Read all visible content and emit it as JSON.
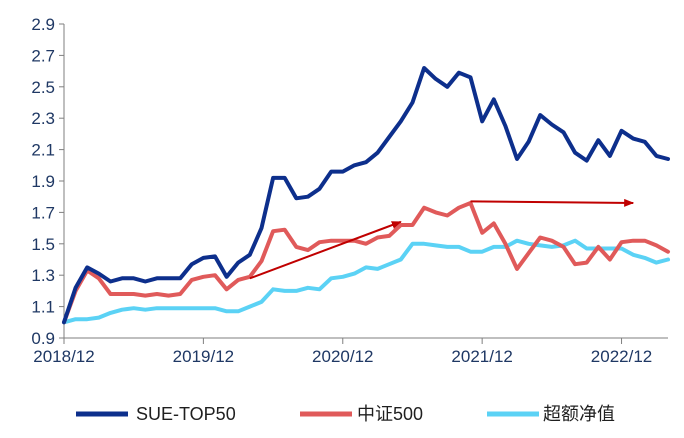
{
  "chart_data": {
    "type": "line",
    "title": "",
    "xlabel": "",
    "ylabel": "",
    "ylim": [
      0.9,
      2.9
    ],
    "yticks": [
      "0.9",
      "1.1",
      "1.3",
      "1.5",
      "1.7",
      "1.9",
      "2.1",
      "2.3",
      "2.5",
      "2.7",
      "2.9"
    ],
    "xticks": [
      "2018/12",
      "2019/12",
      "2020/12",
      "2021/12",
      "2022/12"
    ],
    "x_start": "2018/12",
    "grid": false,
    "legend_position": "bottom",
    "series": [
      {
        "name": "SUE-TOP50",
        "color": "#0d2f8c",
        "values": [
          1.0,
          1.22,
          1.35,
          1.31,
          1.26,
          1.28,
          1.28,
          1.26,
          1.28,
          1.28,
          1.28,
          1.37,
          1.41,
          1.42,
          1.29,
          1.38,
          1.43,
          1.6,
          1.92,
          1.92,
          1.79,
          1.8,
          1.85,
          1.96,
          1.96,
          2.0,
          2.02,
          2.08,
          2.18,
          2.28,
          2.4,
          2.62,
          2.55,
          2.5,
          2.59,
          2.56,
          2.28,
          2.42,
          2.25,
          2.04,
          2.15,
          2.32,
          2.26,
          2.21,
          2.08,
          2.03,
          2.16,
          2.06,
          2.22,
          2.17,
          2.15,
          2.06,
          2.04
        ]
      },
      {
        "name": "中证500",
        "color": "#e05a5a",
        "values": [
          1.0,
          1.2,
          1.33,
          1.28,
          1.18,
          1.18,
          1.18,
          1.17,
          1.18,
          1.17,
          1.18,
          1.27,
          1.29,
          1.3,
          1.21,
          1.27,
          1.29,
          1.39,
          1.58,
          1.59,
          1.48,
          1.46,
          1.51,
          1.52,
          1.52,
          1.52,
          1.5,
          1.54,
          1.55,
          1.62,
          1.62,
          1.73,
          1.7,
          1.68,
          1.73,
          1.76,
          1.57,
          1.63,
          1.5,
          1.34,
          1.44,
          1.54,
          1.52,
          1.48,
          1.37,
          1.38,
          1.48,
          1.4,
          1.51,
          1.52,
          1.52,
          1.49,
          1.45
        ]
      },
      {
        "name": "超额净值",
        "color": "#5bd2f5",
        "values": [
          1.0,
          1.02,
          1.02,
          1.03,
          1.06,
          1.08,
          1.09,
          1.08,
          1.09,
          1.09,
          1.09,
          1.09,
          1.09,
          1.09,
          1.07,
          1.07,
          1.1,
          1.13,
          1.21,
          1.2,
          1.2,
          1.22,
          1.21,
          1.28,
          1.29,
          1.31,
          1.35,
          1.34,
          1.37,
          1.4,
          1.5,
          1.5,
          1.49,
          1.48,
          1.48,
          1.45,
          1.45,
          1.48,
          1.48,
          1.52,
          1.5,
          1.49,
          1.48,
          1.49,
          1.52,
          1.47,
          1.47,
          1.47,
          1.47,
          1.43,
          1.41,
          1.38,
          1.4
        ]
      }
    ],
    "annotations": [
      {
        "type": "arrow",
        "color": "#c00000",
        "from_index": 16,
        "from_value": 1.28,
        "to_index": 29,
        "to_value": 1.64
      },
      {
        "type": "arrow",
        "color": "#c00000",
        "from_index": 35,
        "from_value": 1.77,
        "to_index": 49,
        "to_value": 1.76
      }
    ]
  }
}
